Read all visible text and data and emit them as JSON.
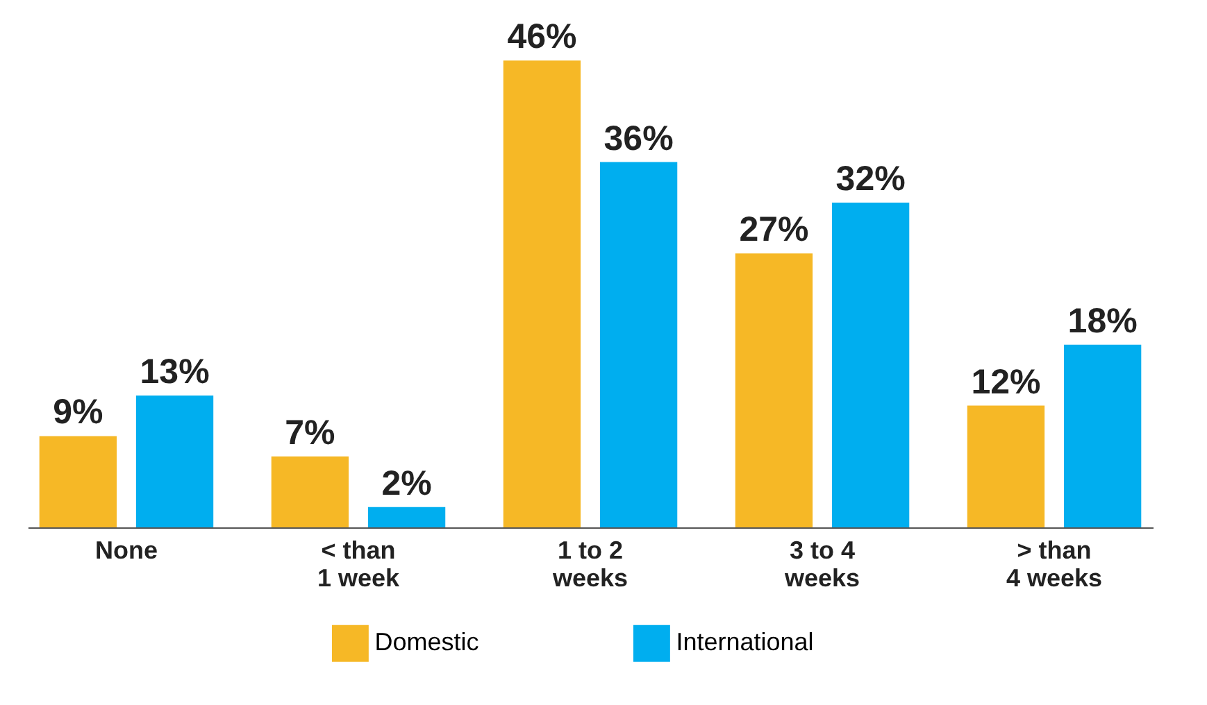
{
  "chart_data": {
    "type": "bar",
    "categories": [
      "None",
      "< than\n1 week",
      "1 to 2\nweeks",
      "3 to 4\nweeks",
      "> than\n4 weeks"
    ],
    "series": [
      {
        "name": "Domestic",
        "color": "#f6b826",
        "values": [
          9,
          7,
          46,
          27,
          12
        ],
        "value_labels": [
          "9%",
          "7%",
          "46%",
          "27%",
          "12%"
        ]
      },
      {
        "name": "International",
        "color": "#00aeef",
        "values": [
          13,
          2,
          36,
          32,
          18
        ],
        "value_labels": [
          "13%",
          "2%",
          "36%",
          "32%",
          "18%"
        ]
      }
    ],
    "grid": false,
    "legend": "bottom"
  }
}
